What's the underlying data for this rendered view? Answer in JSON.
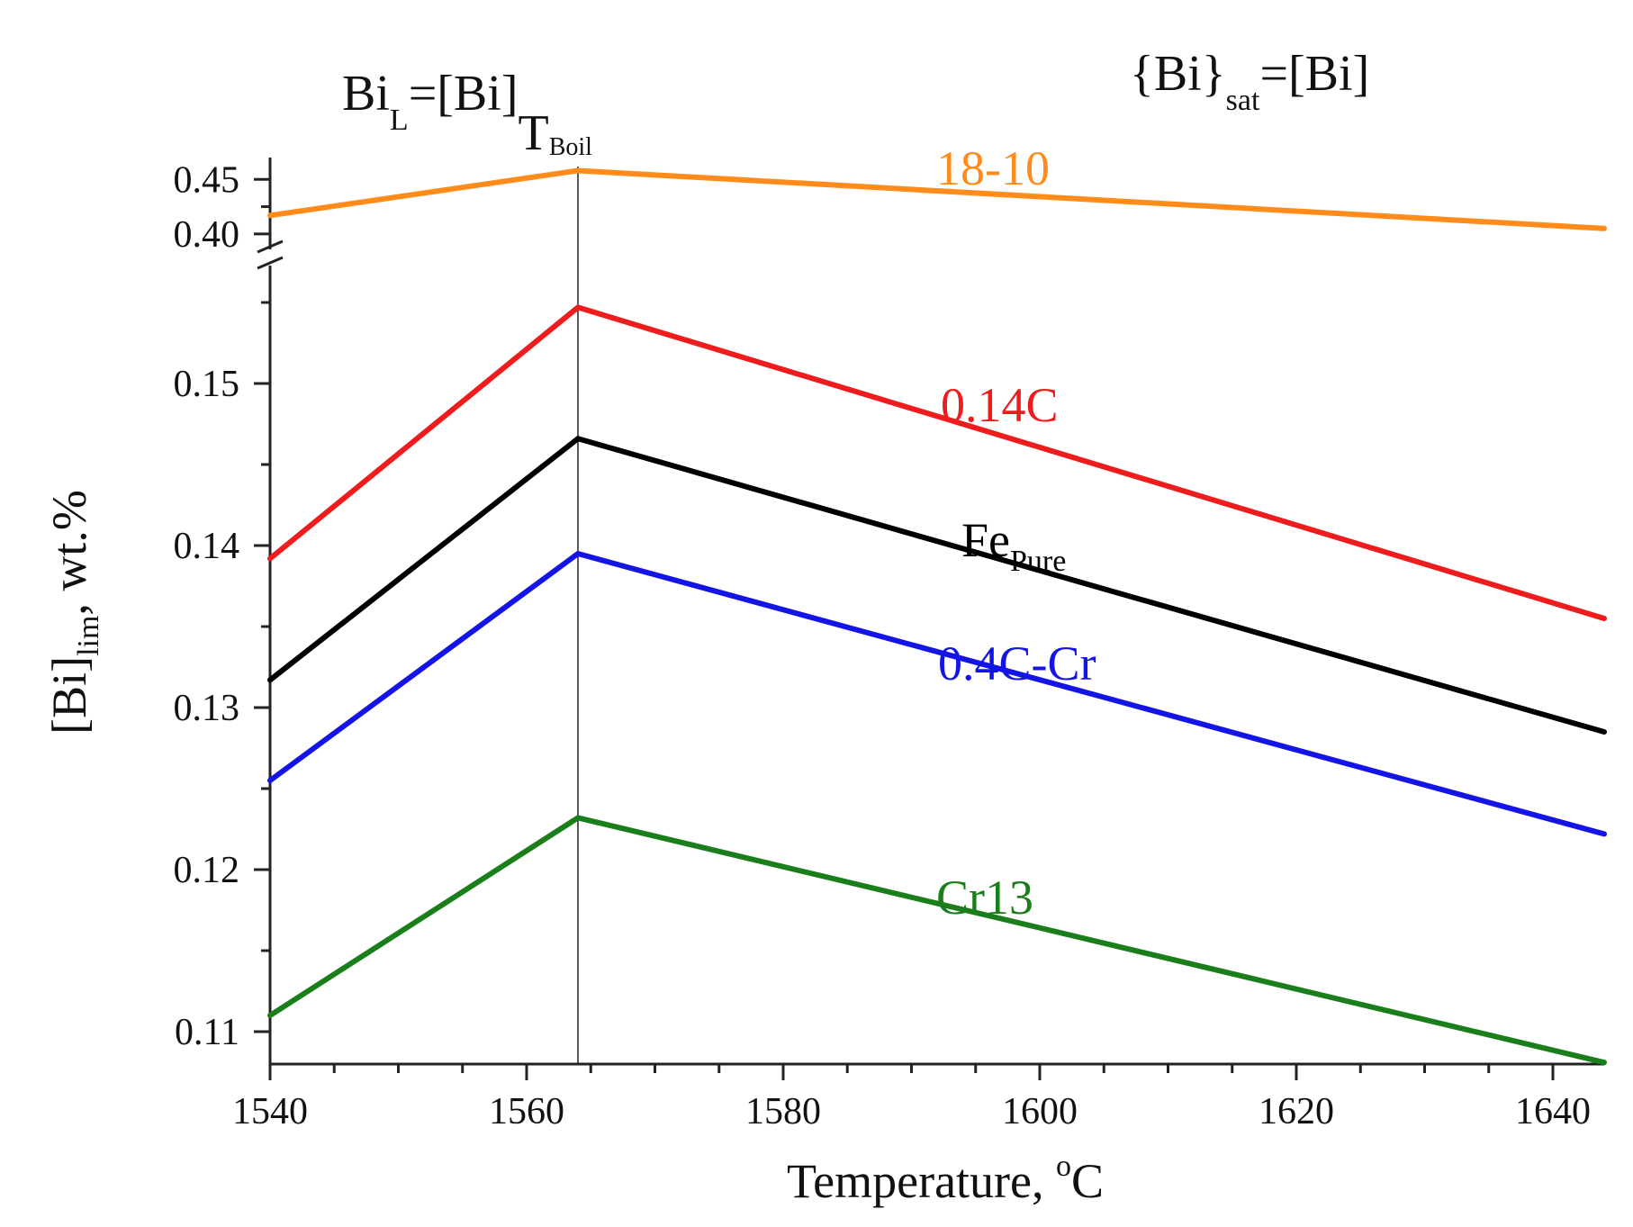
{
  "chart_data": {
    "type": "line",
    "x_axis": {
      "title": "Temperature, ",
      "title_sup": "o",
      "title_suffix": "C",
      "range": [
        1540,
        1644
      ],
      "ticks": [
        1540,
        1560,
        1580,
        1600,
        1620,
        1640
      ],
      "tick_labels": [
        "1540",
        "1560",
        "1580",
        "1600",
        "1620",
        "1640"
      ]
    },
    "y_axis": {
      "title_prefix": "[Bi]",
      "title_sub": "lim",
      "title_suffix": ", wt.%",
      "broken": true,
      "lower_range": [
        0.108,
        0.157
      ],
      "upper_range": [
        0.39,
        0.47
      ],
      "lower_ticks": [
        0.11,
        0.12,
        0.13,
        0.14,
        0.15
      ],
      "lower_tick_labels": [
        "0.11",
        "0.12",
        "0.13",
        "0.14",
        "0.15"
      ],
      "upper_ticks": [
        0.4,
        0.45
      ],
      "upper_tick_labels": [
        "0.40",
        "0.45"
      ]
    },
    "reference_line": {
      "x": 1564,
      "label_prefix": "T",
      "label_sub": "Boil"
    },
    "header": {
      "left": {
        "main": "Bi",
        "sub": "L",
        "middle": "=[Bi]"
      },
      "right": {
        "main": "{Bi}",
        "sub": "sat",
        "suffix": "=[Bi]"
      }
    },
    "series": [
      {
        "name": "18-10",
        "color": "#FF8C1A",
        "segment": "upper",
        "x": [
          1540,
          1564,
          1644
        ],
        "y": [
          0.417,
          0.458,
          0.405
        ]
      },
      {
        "name": "0.14C",
        "color": "#EE1C1C",
        "segment": "lower",
        "x": [
          1540,
          1564,
          1644
        ],
        "y": [
          0.1392,
          0.1547,
          0.1355
        ]
      },
      {
        "name": "Fe",
        "name_sub": "Pure",
        "color": "#000000",
        "segment": "lower",
        "x": [
          1540,
          1564,
          1644
        ],
        "y": [
          0.1317,
          0.1466,
          0.1285
        ]
      },
      {
        "name": "0.4C-Cr",
        "color": "#1414E6",
        "segment": "lower",
        "x": [
          1540,
          1564,
          1644
        ],
        "y": [
          0.1255,
          0.1395,
          0.1222
        ]
      },
      {
        "name": "Cr13",
        "color": "#1A7F1A",
        "segment": "lower",
        "x": [
          1540,
          1564,
          1644
        ],
        "y": [
          0.111,
          0.1232,
          0.1081
        ]
      }
    ]
  }
}
